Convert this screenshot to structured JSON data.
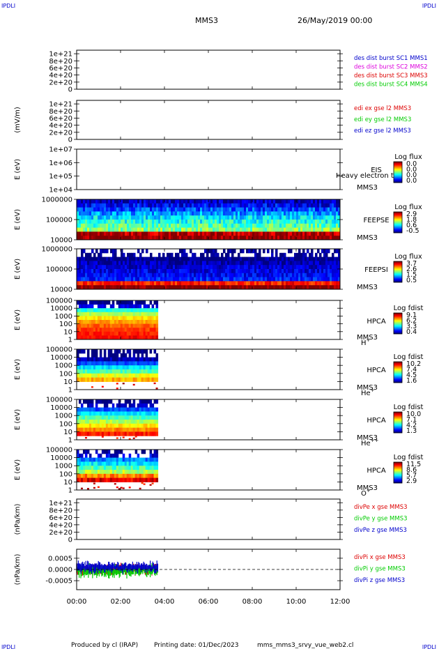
{
  "corner_marks": {
    "top_left": "IPDLI",
    "top_right": "IPDLI",
    "bottom_left": "IPDLI",
    "bottom_right": "IPDLI"
  },
  "header": {
    "spacecraft": "MMS3",
    "datetime": "26/May/2019 00:00"
  },
  "footer": {
    "produced_by": "Produced by cl (IRAP)",
    "printing_date": "Printing date: 01/Dec/2023",
    "filename": "mms_mms3_srvy_vue_web2.cl"
  },
  "colors": {
    "red": "#dd0000",
    "magenta": "#dd00dd",
    "green": "#00cc00",
    "blue": "#0000cc",
    "black": "#000000"
  },
  "chart_data": [
    {
      "type": "line",
      "id": "p1",
      "ylabel": "",
      "yticks": [
        "1e+21",
        "8e+20",
        "6e+20",
        "4e+20",
        "2e+20",
        "0"
      ],
      "ylim": [
        0,
        1.1e+21
      ],
      "zero_line": true,
      "legend": [
        {
          "text": "des dist burst SC1 MMS1",
          "color": "#0000cc"
        },
        {
          "text": "des dist burst SC2 MMS2",
          "color": "#dd00dd"
        },
        {
          "text": "des dist burst SC3 MMS3",
          "color": "#dd0000"
        },
        {
          "text": "des dist burst SC4 MMS4",
          "color": "#00cc00"
        }
      ],
      "series": []
    },
    {
      "type": "line",
      "id": "p2",
      "ylabel": "(mV/m)",
      "yticks": [
        "1e+21",
        "8e+20",
        "6e+20",
        "4e+20",
        "2e+20",
        "0"
      ],
      "ylim": [
        0,
        1.1e+21
      ],
      "zero_line": true,
      "legend": [
        {
          "text": "edi ex gse l2 MMS3",
          "color": "#dd0000"
        },
        {
          "text": "edi ey gse l2 MMS3",
          "color": "#00cc00"
        },
        {
          "text": "edi ez gse l2 MMS3",
          "color": "#0000cc"
        }
      ],
      "series": []
    },
    {
      "type": "heatmap",
      "id": "p3",
      "ylabel": "E (eV)",
      "yticks": [
        "1e+07",
        "1e+06",
        "1e+05",
        "1e+04"
      ],
      "log": true,
      "instrument": [
        "EIS",
        "MMS3"
      ],
      "overlay_text": "Heavy electron to",
      "cbar_title": "Log flux",
      "cbar_ticks": [
        "0.0",
        "0.0",
        "0.0",
        "0.0"
      ],
      "spectrum": null
    },
    {
      "type": "heatmap",
      "id": "p4",
      "ylabel": "E (eV)",
      "yticks": [
        "1000000",
        "100000",
        "10000"
      ],
      "log": true,
      "instrument": [
        "FEEPSE",
        "MMS3"
      ],
      "cbar_title": "Log flux",
      "cbar_ticks": [
        "2.9",
        "1.8",
        "0.6",
        "-0.5"
      ],
      "spectrum": {
        "t_start": 0,
        "t_end": 12,
        "levels": [
          0.05,
          0.12,
          0.2,
          0.28,
          0.35,
          0.4,
          0.45,
          0.5,
          0.95,
          1.0
        ],
        "noise": 0.2,
        "sparse_top": 0
      }
    },
    {
      "type": "heatmap",
      "id": "p5",
      "ylabel": "E (eV)",
      "yticks": [
        "1000000",
        "100000",
        "10000"
      ],
      "log": true,
      "instrument": [
        "FEEPSI",
        "MMS3"
      ],
      "cbar_title": "Log flux",
      "cbar_ticks": [
        "3.7",
        "2.6",
        "1.5",
        "0.5"
      ],
      "spectrum": {
        "t_start": 0,
        "t_end": 12,
        "levels": [
          0,
          0,
          0,
          0.04,
          0.08,
          0.1,
          0.12,
          0.15,
          0.85,
          1.0
        ],
        "noise": 0.15,
        "sparse_top": 0.55
      }
    },
    {
      "type": "heatmap",
      "id": "p6",
      "ylabel": "E (eV)",
      "yticks": [
        "100000",
        "10000",
        "1000",
        "100",
        "10",
        "1"
      ],
      "log": true,
      "instrument": [
        "HPCA",
        "MMS3"
      ],
      "species": "H",
      "species_sup": "+",
      "cbar_title": "Log fdist",
      "cbar_ticks": [
        "9.1",
        "6.2",
        "3.3",
        "0.4"
      ],
      "spectrum": {
        "t_start": 0,
        "t_end": 3.7,
        "levels": [
          0,
          0.1,
          0.4,
          0.55,
          0.65,
          0.72,
          0.78,
          0.82,
          0.85,
          0.88
        ],
        "noise": 0.08,
        "sparse_top": 0.3
      }
    },
    {
      "type": "heatmap",
      "id": "p7",
      "ylabel": "E (eV)",
      "yticks": [
        "100000",
        "10000",
        "1000",
        "100",
        "10",
        "1"
      ],
      "log": true,
      "instrument": [
        "HPCA",
        "MMS3"
      ],
      "species": "He",
      "species_sup": "+",
      "cbar_title": "Log fdist",
      "cbar_ticks": [
        "10.2",
        "7.4",
        "4.5",
        "1.6"
      ],
      "spectrum": {
        "t_start": 0,
        "t_end": 3.7,
        "levels": [
          0,
          0,
          0.05,
          0.2,
          0.35,
          0.45,
          0.6,
          0.7,
          -1,
          -1
        ],
        "noise": 0.1,
        "sparse_top": 0.35
      }
    },
    {
      "type": "heatmap",
      "id": "p8",
      "ylabel": "E (eV)",
      "yticks": [
        "100000",
        "10000",
        "1000",
        "100",
        "10",
        "1"
      ],
      "log": true,
      "instrument": [
        "HPCA",
        "MMS3"
      ],
      "species": "He",
      "species_sup": "++",
      "cbar_title": "Log fdist",
      "cbar_ticks": [
        "10.0",
        "7.1",
        "4.2",
        "1.3"
      ],
      "spectrum": {
        "t_start": 0,
        "t_end": 3.7,
        "levels": [
          0,
          0.05,
          0.2,
          0.35,
          0.45,
          0.55,
          0.65,
          0.75,
          0.85,
          -1
        ],
        "noise": 0.1,
        "sparse_top": 0.4
      }
    },
    {
      "type": "heatmap",
      "id": "p9",
      "ylabel": "E (eV)",
      "yticks": [
        "100000",
        "10000",
        "1000",
        "100",
        "10",
        "1"
      ],
      "log": true,
      "instrument": [
        "HPCA",
        "MMS3"
      ],
      "species": "O",
      "species_sup": "+",
      "cbar_title": "Log fdist",
      "cbar_ticks": [
        "11.5",
        "8.6",
        "5.7",
        "2.9"
      ],
      "spectrum": {
        "t_start": 0,
        "t_end": 3.7,
        "levels": [
          0,
          0.1,
          0.25,
          0.35,
          0.45,
          0.55,
          0.75,
          0.9,
          -1,
          -1
        ],
        "noise": 0.15,
        "sparse_top": 0.5
      }
    },
    {
      "type": "line",
      "id": "p10",
      "ylabel": "(nPa/km)",
      "yticks": [
        "1e+21",
        "8e+20",
        "6e+20",
        "4e+20",
        "2e+20",
        "0"
      ],
      "ylim": [
        0,
        1.1e+21
      ],
      "zero_line": true,
      "legend": [
        {
          "text": "divPe x gse MMS3",
          "color": "#dd0000"
        },
        {
          "text": "divPe y gse MMS3",
          "color": "#00cc00"
        },
        {
          "text": "divPe z gse MMS3",
          "color": "#0000cc"
        }
      ],
      "series": []
    },
    {
      "type": "line",
      "id": "p11",
      "ylabel": "(nPa/km)",
      "yticks": [
        "0.0005",
        "0.0000",
        "-0.0005"
      ],
      "ylim": [
        -0.0009,
        0.0009
      ],
      "zero_line": true,
      "legend": [
        {
          "text": "divPi x gse MMS3",
          "color": "#dd0000"
        },
        {
          "text": "divPi y gse MMS3",
          "color": "#00cc00"
        },
        {
          "text": "divPi z gse MMS3",
          "color": "#0000cc"
        }
      ],
      "series": [
        {
          "name": "divPi x gse MMS3",
          "color": "#dd0000",
          "t_end": 3.7,
          "amp": 0.0003,
          "offset": 0.0
        },
        {
          "name": "divPi y gse MMS3",
          "color": "#00cc00",
          "t_end": 3.7,
          "amp": 0.00035,
          "offset": -5e-05
        },
        {
          "name": "divPi z gse MMS3",
          "color": "#0000cc",
          "t_end": 3.7,
          "amp": 0.0003,
          "offset": 0.0001
        }
      ]
    }
  ],
  "time_axis": {
    "ticks": [
      "00:00",
      "02:00",
      "04:00",
      "06:00",
      "08:00",
      "10:00",
      "12:00"
    ],
    "range_hours": [
      0,
      12
    ]
  }
}
